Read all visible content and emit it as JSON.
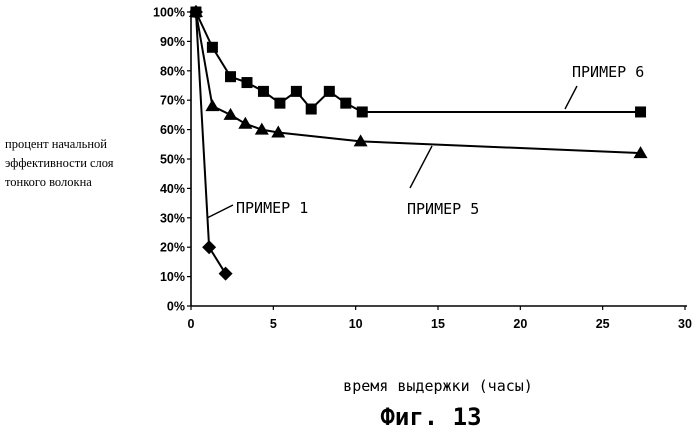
{
  "chart_data": {
    "type": "line",
    "ylabel": [
      "процент начальной",
      "эффективности слоя",
      "тонкого волокна"
    ],
    "xlabel": "время выдержки (часы)",
    "figure_caption": "Фиг. 13",
    "xlim": [
      0,
      30
    ],
    "ylim": [
      0,
      100
    ],
    "x_ticks": [
      "0",
      "5",
      "10",
      "15",
      "20",
      "25",
      "30"
    ],
    "y_ticks": [
      "0%",
      "10%",
      "20%",
      "30%",
      "40%",
      "50%",
      "60%",
      "70%",
      "80%",
      "90%",
      "100%"
    ],
    "grid": false,
    "series": [
      {
        "name": "ПРИМЕР 1",
        "marker": "diamond",
        "x": [
          0.3,
          1.1,
          2.1
        ],
        "y": [
          100,
          20,
          11
        ]
      },
      {
        "name": "ПРИМЕР 5",
        "marker": "triangle",
        "x": [
          0.3,
          1.3,
          2.4,
          3.3,
          4.3,
          5.3,
          10.3,
          27.3
        ],
        "y": [
          100,
          68,
          65,
          62,
          60,
          59,
          56,
          52
        ]
      },
      {
        "name": "ПРИМЕР 6",
        "marker": "square",
        "x": [
          0.3,
          1.3,
          2.4,
          3.4,
          4.4,
          5.4,
          6.4,
          7.3,
          8.4,
          9.4,
          10.4,
          27.3
        ],
        "y": [
          100,
          88,
          78,
          76,
          73,
          69,
          73,
          67,
          73,
          69,
          66,
          66
        ]
      }
    ]
  }
}
